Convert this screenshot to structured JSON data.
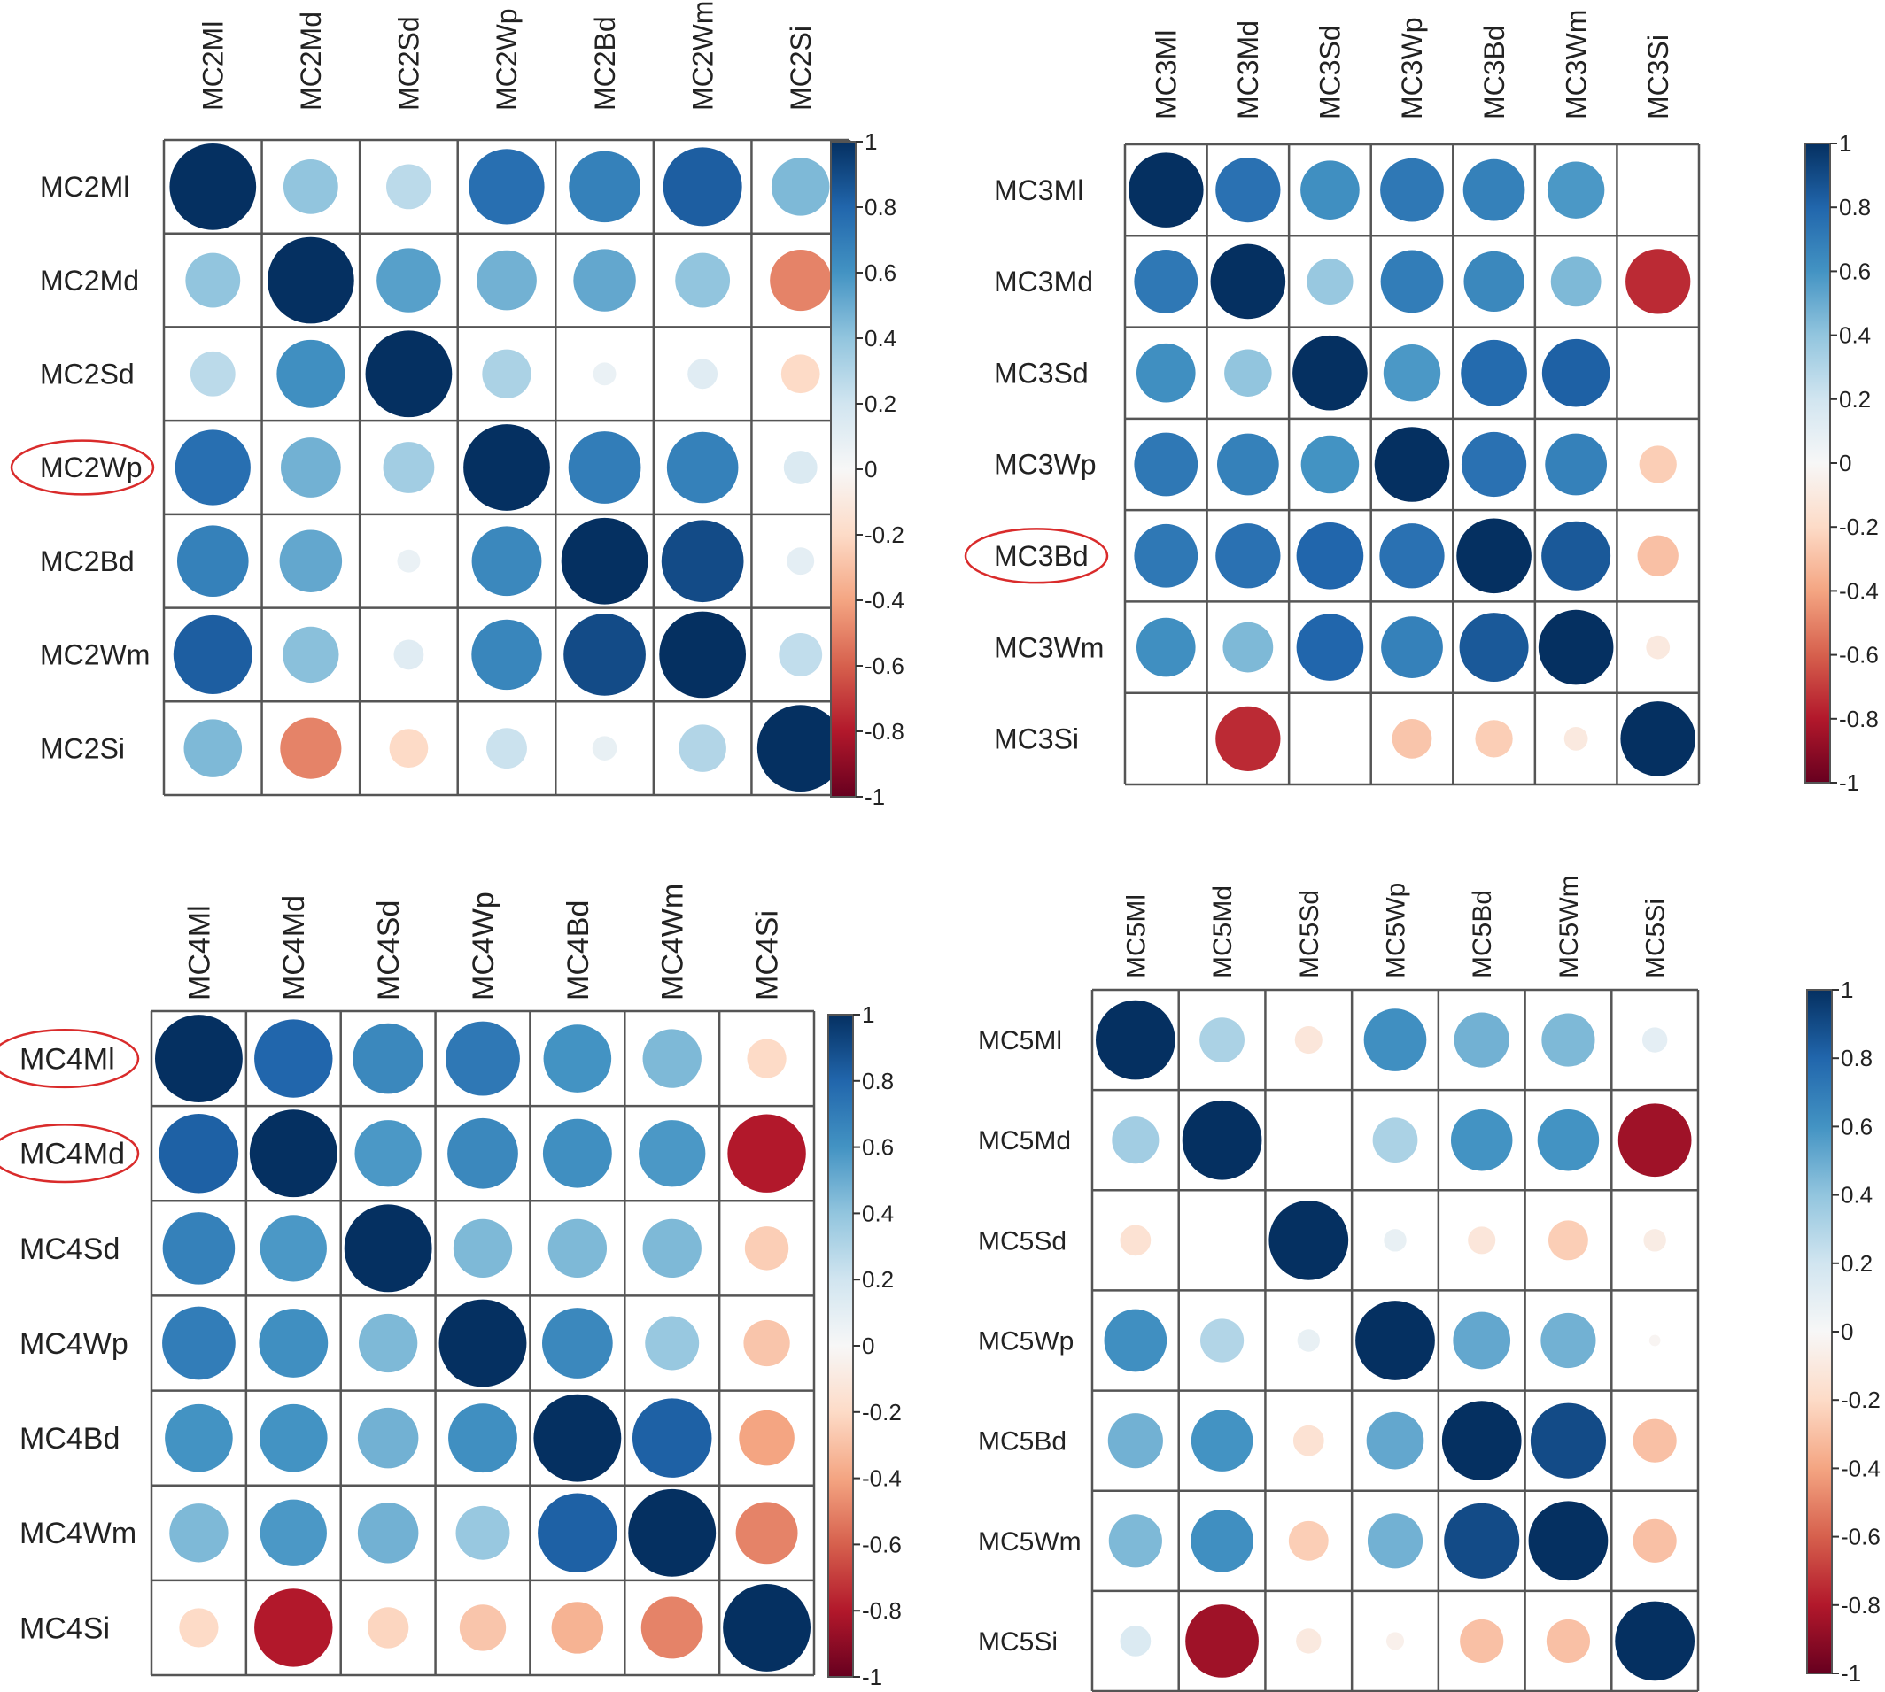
{
  "chart_data": [
    {
      "type": "heatmap",
      "variables": [
        "MC2Ml",
        "MC2Md",
        "MC2Sd",
        "MC2Wp",
        "MC2Bd",
        "MC2Wm",
        "MC2Si"
      ],
      "highlighted": [
        "MC2Wp"
      ],
      "matrix": [
        [
          1.0,
          0.4,
          0.27,
          0.76,
          0.68,
          0.83,
          0.45
        ],
        [
          0.4,
          1.0,
          0.55,
          0.48,
          0.52,
          0.4,
          -0.5
        ],
        [
          0.27,
          0.62,
          1.0,
          0.32,
          0.07,
          0.12,
          -0.2
        ],
        [
          0.76,
          0.48,
          0.35,
          1.0,
          0.7,
          0.68,
          0.15
        ],
        [
          0.68,
          0.52,
          0.07,
          0.65,
          1.0,
          0.9,
          0.1
        ],
        [
          0.83,
          0.42,
          0.12,
          0.66,
          0.9,
          1.0,
          0.25
        ],
        [
          0.45,
          -0.5,
          -0.2,
          0.22,
          0.08,
          0.3,
          1.0
        ]
      ],
      "colorbar_ticks": [
        "1",
        "0.8",
        "0.6",
        "0.4",
        "0.2",
        "0",
        "-0.2",
        "-0.4",
        "-0.6",
        "-0.8",
        "-1"
      ],
      "colorbar_range": [
        -1,
        1
      ]
    },
    {
      "type": "heatmap",
      "variables": [
        "MC3Ml",
        "MC3Md",
        "MC3Sd",
        "MC3Wp",
        "MC3Bd",
        "MC3Wm",
        "MC3Si"
      ],
      "highlighted": [
        "MC3Bd"
      ],
      "matrix": [
        [
          1.0,
          0.75,
          0.62,
          0.72,
          0.68,
          0.58,
          0.0
        ],
        [
          0.72,
          1.0,
          0.38,
          0.7,
          0.65,
          0.45,
          -0.75
        ],
        [
          0.62,
          0.4,
          1.0,
          0.58,
          0.78,
          0.82,
          0.0
        ],
        [
          0.72,
          0.68,
          0.6,
          1.0,
          0.75,
          0.68,
          -0.25
        ],
        [
          0.72,
          0.75,
          0.8,
          0.75,
          1.0,
          0.85,
          -0.3
        ],
        [
          0.62,
          0.45,
          0.8,
          0.68,
          0.85,
          1.0,
          -0.1
        ],
        [
          0.0,
          -0.75,
          0.0,
          -0.28,
          -0.25,
          -0.1,
          1.0
        ]
      ],
      "colorbar_ticks": [
        "1",
        "0.8",
        "0.6",
        "0.4",
        "0.2",
        "0",
        "-0.2",
        "-0.4",
        "-0.6",
        "-0.8",
        "-1"
      ],
      "colorbar_range": [
        -1,
        1
      ]
    },
    {
      "type": "heatmap",
      "variables": [
        "MC4Ml",
        "MC4Md",
        "MC4Sd",
        "MC4Wp",
        "MC4Bd",
        "MC4Wm",
        "MC4Si"
      ],
      "highlighted": [
        "MC4Ml",
        "MC4Md"
      ],
      "matrix": [
        [
          1.0,
          0.8,
          0.65,
          0.72,
          0.6,
          0.45,
          -0.2
        ],
        [
          0.82,
          1.0,
          0.58,
          0.65,
          0.62,
          0.58,
          -0.8
        ],
        [
          0.68,
          0.58,
          1.0,
          0.45,
          0.45,
          0.45,
          -0.25
        ],
        [
          0.7,
          0.62,
          0.45,
          1.0,
          0.65,
          0.38,
          -0.28
        ],
        [
          0.6,
          0.6,
          0.48,
          0.62,
          1.0,
          0.82,
          -0.4
        ],
        [
          0.45,
          0.58,
          0.48,
          0.38,
          0.82,
          1.0,
          -0.5
        ],
        [
          -0.2,
          -0.8,
          -0.22,
          -0.28,
          -0.35,
          -0.5,
          1.0
        ]
      ],
      "colorbar_ticks": [
        "1",
        "0.8",
        "0.6",
        "0.4",
        "0.2",
        "0",
        "-0.2",
        "-0.4",
        "-0.6",
        "-0.8",
        "-1"
      ],
      "colorbar_range": [
        -1,
        1
      ]
    },
    {
      "type": "heatmap",
      "variables": [
        "MC5Ml",
        "MC5Md",
        "MC5Sd",
        "MC5Wp",
        "MC5Bd",
        "MC5Wm",
        "MC5Si"
      ],
      "highlighted": [],
      "matrix": [
        [
          1.0,
          0.32,
          -0.12,
          0.62,
          0.48,
          0.45,
          0.1
        ],
        [
          0.35,
          1.0,
          0.0,
          0.32,
          0.6,
          0.6,
          -0.85
        ],
        [
          -0.15,
          0.0,
          1.0,
          0.08,
          -0.12,
          -0.25,
          -0.08
        ],
        [
          0.62,
          0.3,
          0.08,
          1.0,
          0.52,
          0.48,
          -0.02
        ],
        [
          0.48,
          0.6,
          -0.15,
          0.52,
          1.0,
          0.9,
          -0.3
        ],
        [
          0.45,
          0.62,
          -0.25,
          0.48,
          0.9,
          1.0,
          -0.3
        ],
        [
          0.15,
          -0.85,
          -0.1,
          -0.05,
          -0.3,
          -0.3,
          1.0
        ]
      ],
      "colorbar_ticks": [
        "1",
        "0.8",
        "0.6",
        "0.4",
        "0.2",
        "0",
        "-0.2",
        "-0.4",
        "-0.6",
        "-0.8",
        "-1"
      ],
      "colorbar_range": [
        -1,
        1
      ]
    }
  ]
}
